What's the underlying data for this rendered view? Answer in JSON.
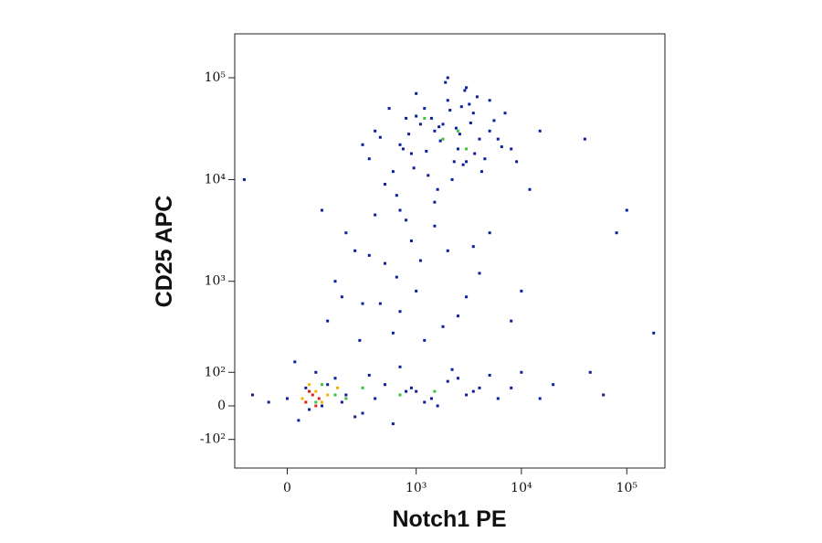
{
  "chart_data": {
    "type": "scatter",
    "x_label": "Notch1 PE",
    "y_label": "CD25 APC",
    "xscale": "biexponential",
    "yscale": "biexponential",
    "xlim": [
      -170,
      230000
    ],
    "ylim": [
      -230,
      270000
    ],
    "xticks": [
      0,
      {
        "value": 1000,
        "label": "10³"
      },
      {
        "value": 10000,
        "label": "10⁴"
      },
      {
        "value": 100000,
        "label": "10⁵"
      }
    ],
    "yticks": [
      {
        "value": -100,
        "label": "-10²"
      },
      0,
      {
        "value": 100,
        "label": "10²"
      },
      {
        "value": 1000,
        "label": "10³"
      },
      {
        "value": 10000,
        "label": "10⁴"
      },
      {
        "value": 100000,
        "label": "10⁵"
      }
    ],
    "series": [
      {
        "color": "#0b1f9a",
        "x": [
          1500,
          2500,
          800,
          3000,
          1200,
          4000,
          600,
          2000,
          5000,
          900,
          1800,
          3500,
          700,
          2200,
          6000,
          1000,
          2800,
          400,
          1600,
          3200,
          8000,
          500,
          1400,
          2600,
          4500,
          1100,
          3800,
          750,
          2100,
          5500,
          950,
          1700,
          3000,
          350,
          1300,
          2400,
          7000,
          650,
          1900,
          4200,
          12000,
          300,
          1500,
          2700,
          850,
          3600,
          1000,
          2300,
          5000,
          450,
          1650,
          9000,
          550,
          2900,
          15000,
          1250,
          3300,
          700,
          2000,
          6500
        ],
        "y": [
          30000,
          20000,
          40000,
          15000,
          50000,
          25000,
          12000,
          60000,
          30000,
          18000,
          35000,
          45000,
          22000,
          10000,
          25000,
          70000,
          14000,
          30000,
          8000,
          55000,
          20000,
          9000,
          40000,
          28000,
          16000,
          35000,
          65000,
          20000,
          48000,
          38000,
          13000,
          24000,
          80000,
          16000,
          11000,
          32000,
          45000,
          7000,
          90000,
          12000,
          8000,
          22000,
          6000,
          52000,
          28000,
          18000,
          42000,
          15000,
          60000,
          26000,
          33000,
          15000,
          50000,
          75000,
          30000,
          19000,
          36000,
          5000,
          100000,
          21000
        ]
      },
      {
        "color": "#0b1f9a",
        "x": [
          200,
          500,
          1000,
          2000,
          300,
          800,
          150,
          3000,
          600,
          1500,
          250,
          4000,
          700,
          120,
          1200,
          5000,
          400,
          900,
          2500,
          180,
          350,
          10000,
          1800,
          100,
          650,
          3500,
          450,
          8000,
          1100,
          280
        ],
        "y": [
          3000,
          1500,
          800,
          2000,
          600,
          4000,
          1000,
          700,
          300,
          3500,
          2000,
          1200,
          500,
          400,
          250,
          3000,
          4500,
          2500,
          450,
          700,
          1800,
          800,
          350,
          5000,
          1100,
          2200,
          600,
          400,
          1600,
          250
        ]
      },
      {
        "color": "#0b1f9a",
        "x": [
          0,
          50,
          100,
          150,
          200,
          300,
          500,
          800,
          1200,
          2000,
          3000,
          5000,
          8000,
          15000,
          -50,
          30,
          80,
          120,
          250,
          400,
          700,
          1000,
          1600,
          2500,
          4000,
          6000,
          10000,
          20000,
          -100,
          20,
          60,
          180,
          350,
          600,
          900,
          1400,
          2200,
          3500,
          45000,
          60000
        ],
        "y": [
          20,
          50,
          0,
          80,
          30,
          -20,
          60,
          40,
          10,
          70,
          30,
          90,
          50,
          20,
          10,
          -40,
          100,
          60,
          -30,
          20,
          120,
          40,
          0,
          80,
          50,
          20,
          100,
          60,
          30,
          140,
          -10,
          10,
          90,
          -50,
          50,
          20,
          110,
          40,
          100,
          30
        ]
      },
      {
        "color": "#0b1f9a",
        "x": [
          -130,
          40000,
          100000,
          180000,
          80000
        ],
        "y": [
          10000,
          25000,
          5000,
          300,
          3000
        ]
      },
      {
        "color": "#35c43a",
        "x": [
          1800,
          2500,
          1200,
          3000,
          60,
          150,
          100,
          200,
          80,
          300,
          700,
          1500
        ],
        "y": [
          25000,
          30000,
          40000,
          20000,
          40,
          30,
          60,
          20,
          10,
          50,
          30,
          40
        ]
      },
      {
        "color": "#f0b400",
        "x": [
          40,
          80,
          120,
          60,
          100,
          160
        ],
        "y": [
          20,
          40,
          30,
          60,
          10,
          50
        ]
      },
      {
        "color": "#e0201a",
        "x": [
          50,
          70,
          90,
          60,
          80
        ],
        "y": [
          10,
          30,
          20,
          40,
          0
        ]
      }
    ]
  }
}
